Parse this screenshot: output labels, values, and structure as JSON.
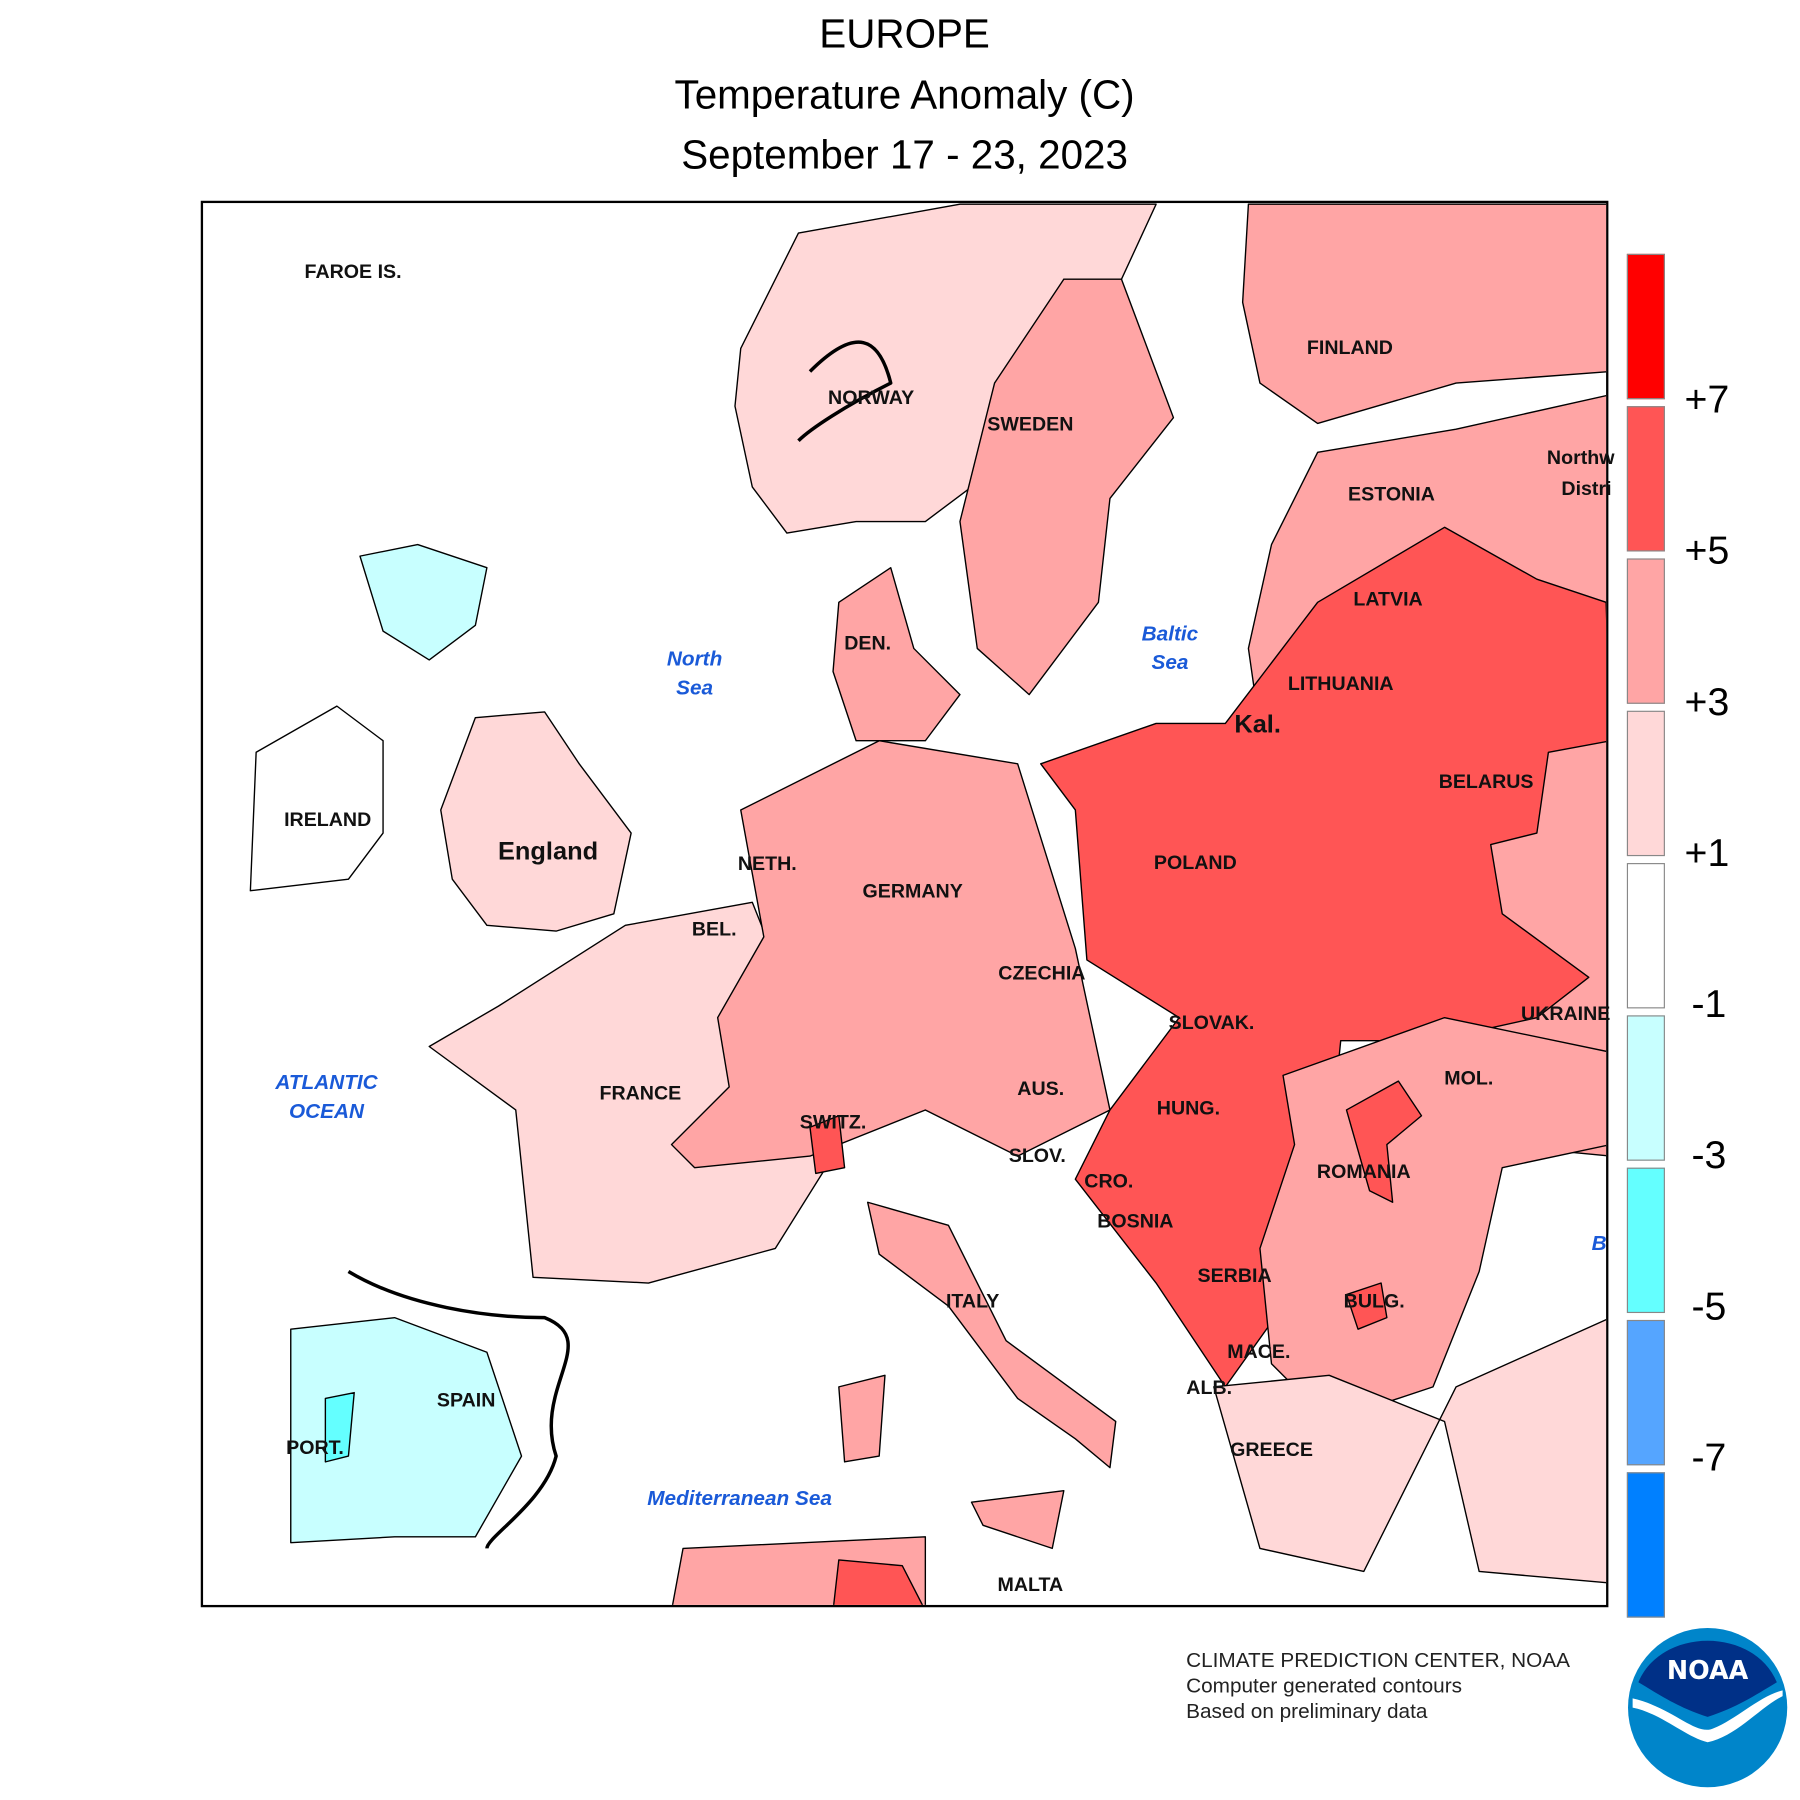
{
  "title": {
    "line1": "EUROPE",
    "line2": "Temperature Anomaly (C)",
    "line3": "September 17 - 23, 2023"
  },
  "legend": {
    "colors": [
      "#ff0000",
      "#ff5555",
      "#ffa5a5",
      "#ffd8d8",
      "#ffffff",
      "#c8ffff",
      "#64ffff",
      "#55a5ff",
      "#0080ff"
    ],
    "ticks": [
      "+7",
      "+5",
      "+3",
      "+1",
      "-1",
      "-3",
      "-5",
      "-7"
    ]
  },
  "labels": {
    "faroe": "FAROE IS.",
    "norway": "NORWAY",
    "sweden": "SWEDEN",
    "finland": "FINLAND",
    "northwest1": "Northw",
    "northwest2": "Distri",
    "estonia": "ESTONIA",
    "latvia": "LATVIA",
    "lithuania": "LITHUANIA",
    "kal": "Kal.",
    "belarus": "BELARUS",
    "poland": "POLAND",
    "den": "DEN.",
    "ireland": "IRELAND",
    "england": "England",
    "neth": "NETH.",
    "bel": "BEL.",
    "germany": "GERMANY",
    "czechia": "CZECHIA",
    "slovak": "SLOVAK.",
    "ukraine": "UKRAINE",
    "france": "FRANCE",
    "switz": "SWITZ.",
    "aus": "AUS.",
    "hung": "HUNG.",
    "mol": "MOL.",
    "slov": "SLOV.",
    "cro": "CRO.",
    "romania": "ROMANIA",
    "bosnia": "BOSNIA",
    "serbia": "SERBIA",
    "bulg": "BULG.",
    "italy": "ITALY",
    "mace": "MACE.",
    "alb": "ALB.",
    "greece": "GREECE",
    "spain": "SPAIN",
    "port": "PORT.",
    "malta": "MALTA"
  },
  "seas": {
    "north_sea": [
      "North",
      "Sea"
    ],
    "baltic_sea": [
      "Baltic",
      "Sea"
    ],
    "atlantic": [
      "ATLANTIC",
      "OCEAN"
    ],
    "med": "Mediterranean Sea",
    "black": "B"
  },
  "credits": [
    "CLIMATE PREDICTION CENTER, NOAA",
    "Computer generated contours",
    "Based on preliminary data"
  ],
  "logo_text": "NOAA"
}
